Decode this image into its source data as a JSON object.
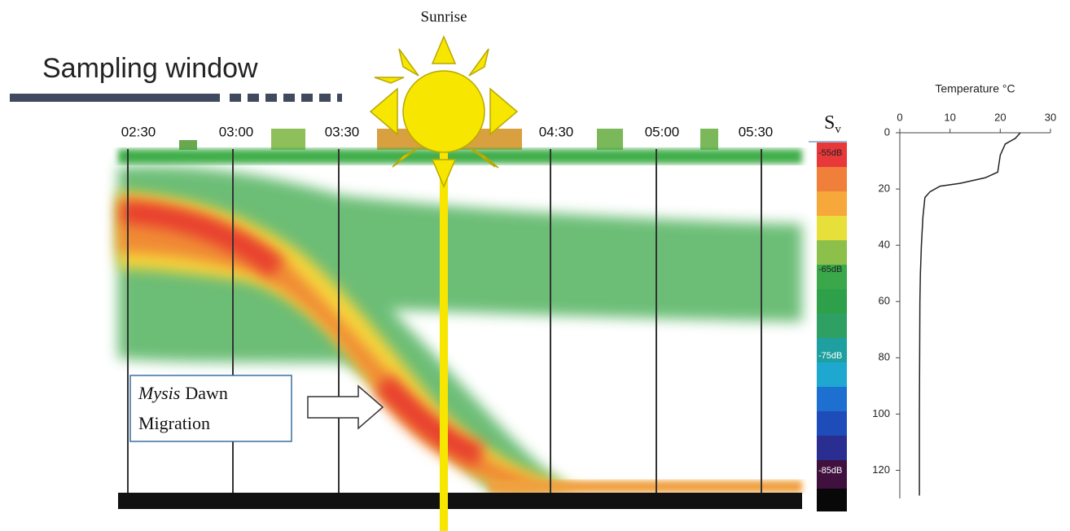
{
  "sunrise_label": "Sunrise",
  "sampling_window_label": "Sampling window",
  "echogram": {
    "time_labels": [
      "02:30",
      "03:00",
      "03:30",
      "04:30",
      "05:00",
      "05:30"
    ],
    "sv_symbol": "S",
    "sv_subscript": "v",
    "colorbar_labels": [
      "-55dB",
      "-65dB",
      "-75dB",
      "-85dB"
    ],
    "annotation": {
      "species": "Mysis",
      "line1": "Dawn",
      "line2": "Migration"
    }
  },
  "chart_data": {
    "type": "line",
    "title": "Temperature °C",
    "x": [
      24,
      23,
      21,
      20,
      19.5,
      17,
      12,
      8,
      6,
      5,
      4.6,
      4.3,
      4.1,
      4,
      3.9,
      3.9
    ],
    "values": [
      0,
      2,
      4,
      8,
      14,
      16,
      18,
      19,
      21,
      23,
      30,
      40,
      50,
      60,
      100,
      129
    ],
    "color": "#222222",
    "xlim": [
      0,
      30
    ],
    "xticks": [
      0,
      10,
      20,
      30
    ],
    "ylim": [
      0,
      130
    ],
    "yticks": [
      0,
      20,
      40,
      60,
      80,
      100,
      120
    ],
    "y_inverted": true,
    "x_axis_position": "top"
  }
}
